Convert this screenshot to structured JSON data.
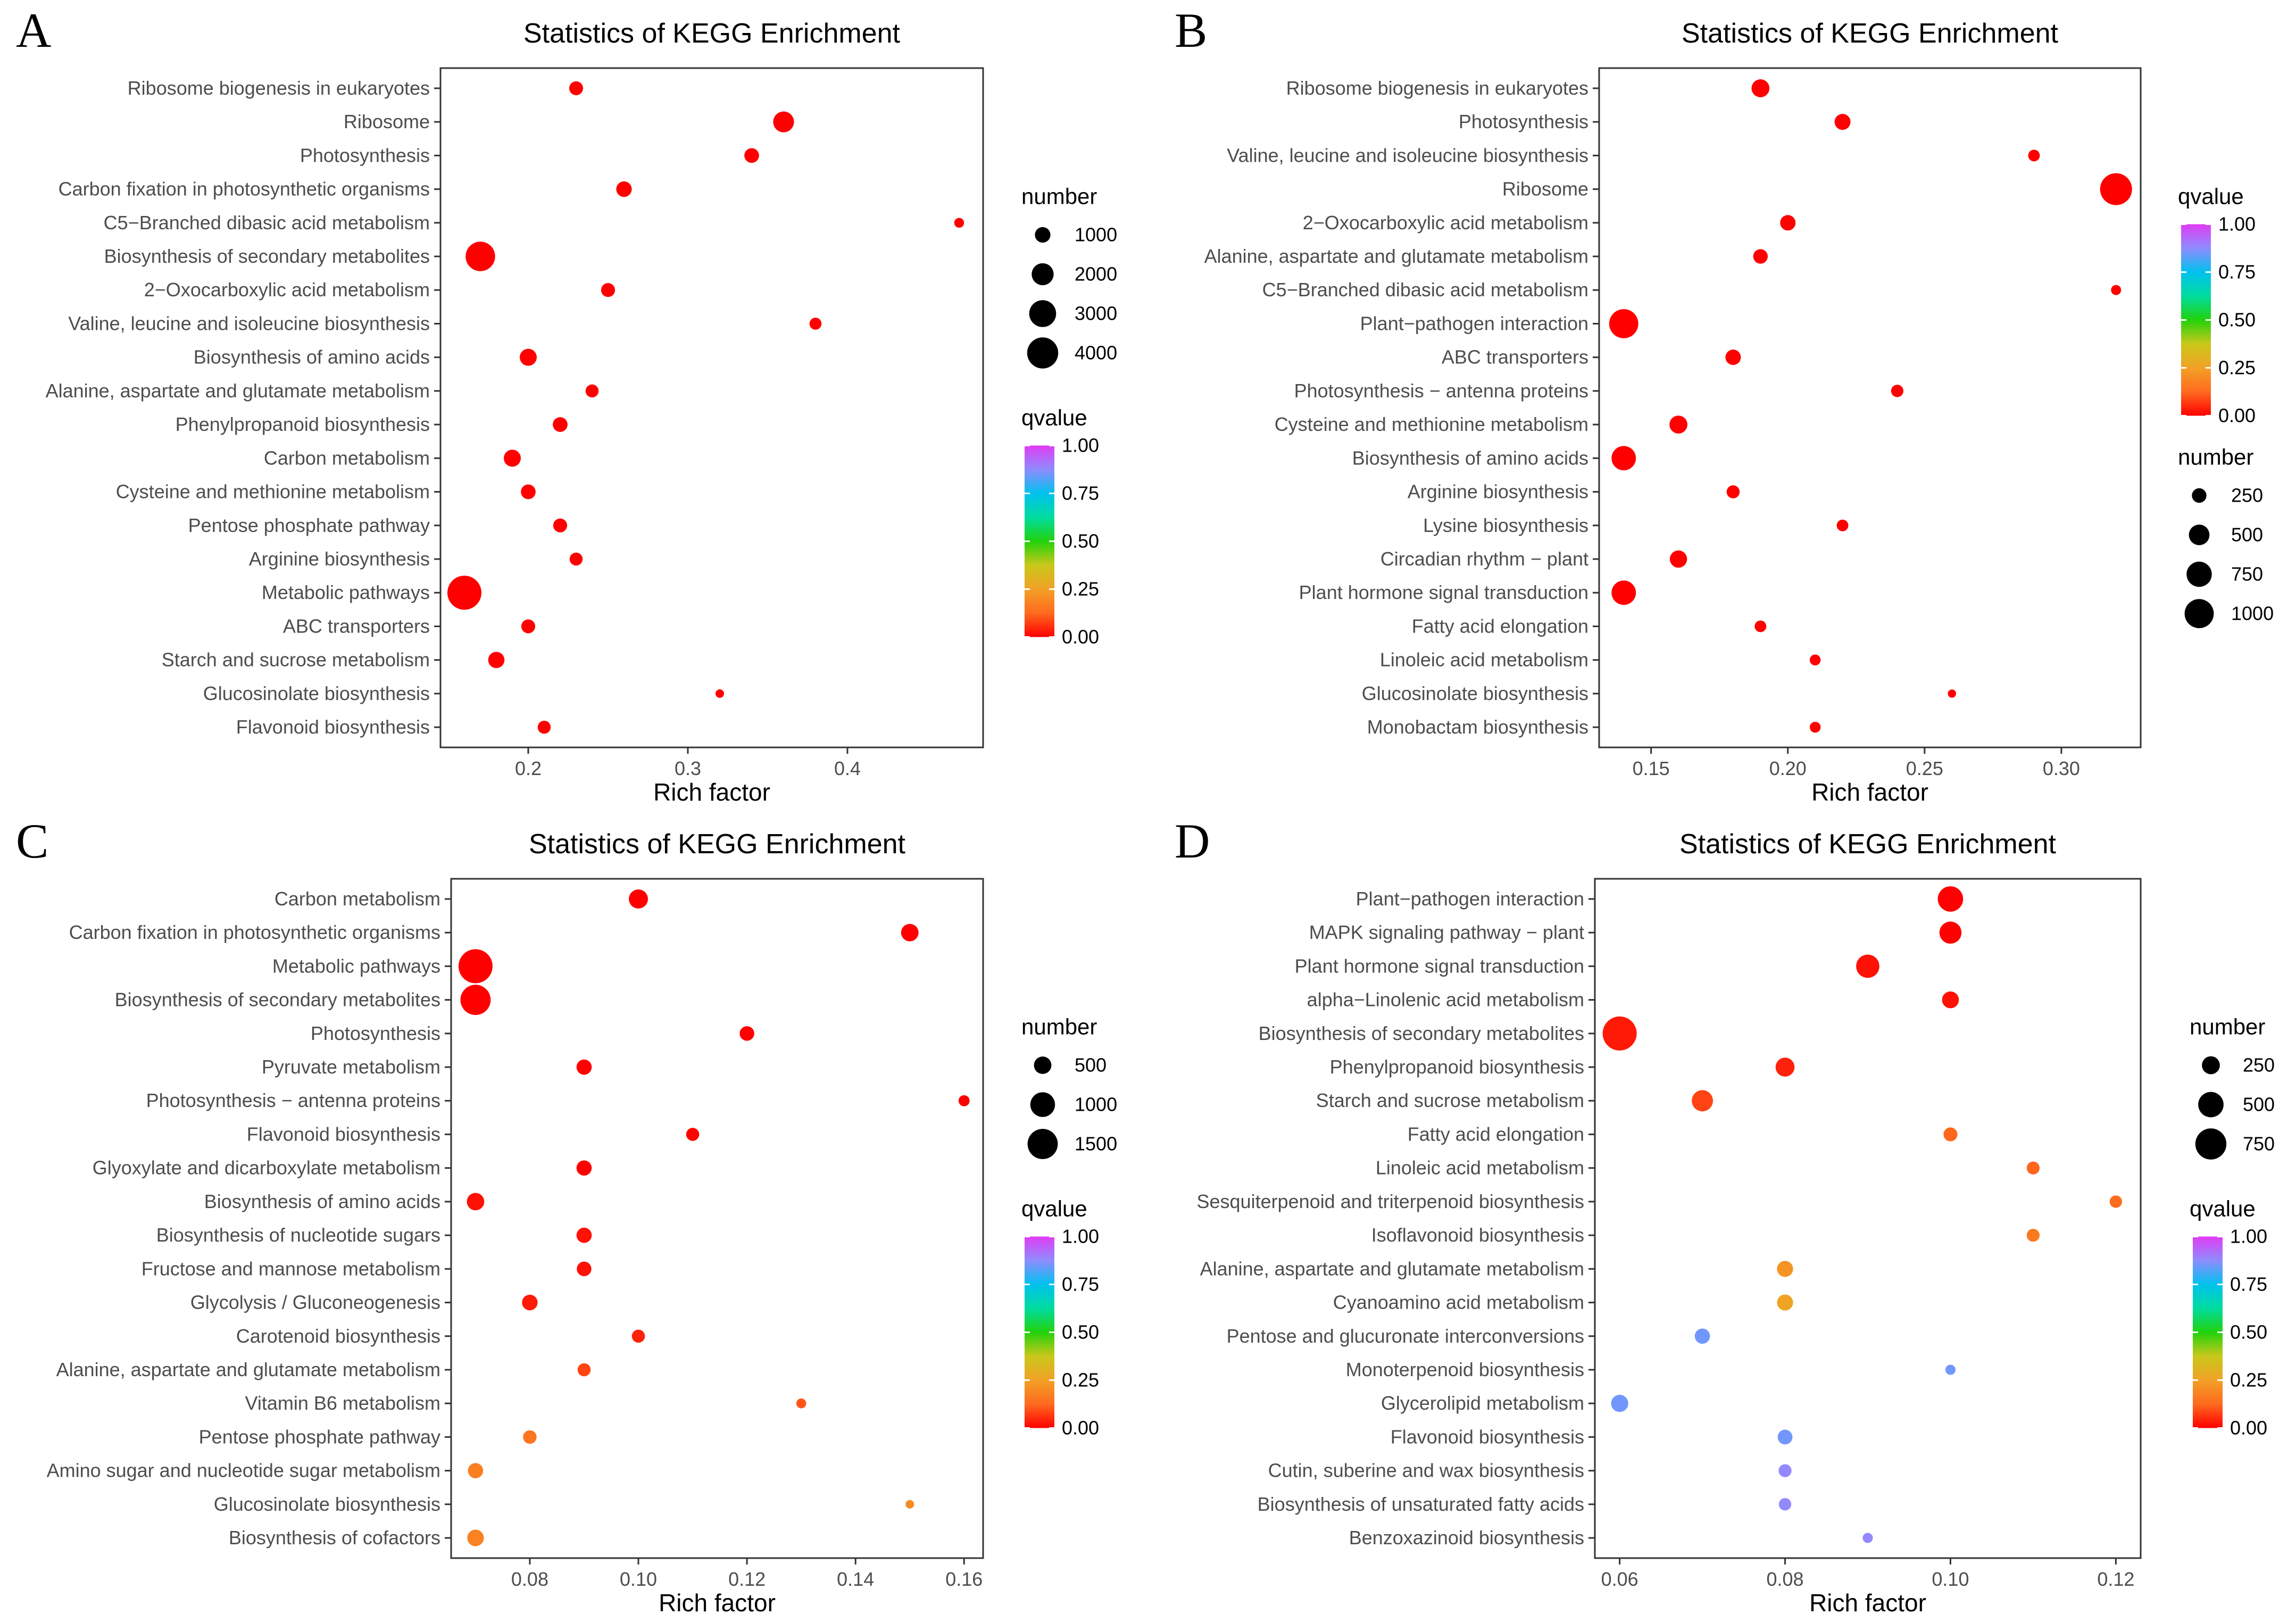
{
  "figure": {
    "panels": [
      "A",
      "B",
      "C",
      "D"
    ]
  },
  "chart_data": [
    {
      "panel_label": "A",
      "type": "scatter",
      "title": "Statistics of KEGG Enrichment",
      "xlabel": "Rich factor",
      "ylabel": "",
      "xlim": [
        0.145,
        0.485
      ],
      "xticks": [
        0.2,
        0.3,
        0.4
      ],
      "xtick_labels": [
        "0.2",
        "0.3",
        "0.4"
      ],
      "grid": false,
      "categories": [
        "Ribosome biogenesis in eukaryotes",
        "Ribosome",
        "Photosynthesis",
        "Carbon fixation in photosynthetic organisms",
        "C5−Branched dibasic acid metabolism",
        "Biosynthesis of secondary metabolites",
        "2−Oxocarboxylic acid metabolism",
        "Valine, leucine and isoleucine biosynthesis",
        "Biosynthesis of amino acids",
        "Alanine, aspartate and glutamate metabolism",
        "Phenylpropanoid biosynthesis",
        "Carbon metabolism",
        "Cysteine and methionine metabolism",
        "Pentose phosphate pathway",
        "Arginine biosynthesis",
        "Metabolic pathways",
        "ABC transporters",
        "Starch and sucrose metabolism",
        "Glucosinolate biosynthesis",
        "Flavonoid biosynthesis"
      ],
      "x": [
        0.23,
        0.36,
        0.34,
        0.26,
        0.47,
        0.17,
        0.25,
        0.38,
        0.2,
        0.24,
        0.22,
        0.19,
        0.2,
        0.22,
        0.23,
        0.16,
        0.2,
        0.18,
        0.32,
        0.21
      ],
      "number": [
        800,
        1800,
        900,
        1000,
        400,
        3600,
        800,
        600,
        1200,
        700,
        900,
        1200,
        900,
        800,
        700,
        4800,
        800,
        1100,
        300,
        700
      ],
      "qvalue": [
        0,
        0,
        0,
        0,
        0,
        0,
        0,
        0,
        0,
        0,
        0,
        0,
        0,
        0,
        0,
        0,
        0,
        0,
        0,
        0
      ],
      "size_legend": {
        "title": "number",
        "values": [
          1000,
          2000,
          3000,
          4000
        ],
        "labels": [
          "1000",
          "2000",
          "3000",
          "4000"
        ],
        "max": 4800,
        "position": "upper-right"
      },
      "color_legend": {
        "title": "qvalue",
        "ticks": [
          1.0,
          0.75,
          0.5,
          0.25,
          0.0
        ],
        "labels": [
          "1.00",
          "0.75",
          "0.50",
          "0.25",
          "0.00"
        ],
        "position": "lower-right"
      },
      "legend_order": [
        "size",
        "color"
      ]
    },
    {
      "panel_label": "B",
      "type": "scatter",
      "title": "Statistics of KEGG Enrichment",
      "xlabel": "Rich factor",
      "ylabel": "",
      "xlim": [
        0.131,
        0.329
      ],
      "xticks": [
        0.15,
        0.2,
        0.25,
        0.3
      ],
      "xtick_labels": [
        "0.15",
        "0.20",
        "0.25",
        "0.30"
      ],
      "grid": false,
      "categories": [
        "Ribosome biogenesis in eukaryotes",
        "Photosynthesis",
        "Valine, leucine and isoleucine biosynthesis",
        "Ribosome",
        "2−Oxocarboxylic acid metabolism",
        "Alanine, aspartate and glutamate metabolism",
        "C5−Branched dibasic acid metabolism",
        "Plant−pathogen interaction",
        "ABC transporters",
        "Photosynthesis − antenna proteins",
        "Cysteine and methionine metabolism",
        "Biosynthesis of amino acids",
        "Arginine biosynthesis",
        "Lysine biosynthesis",
        "Circadian rhythm − plant",
        "Plant hormone signal transduction",
        "Fatty acid elongation",
        "Linoleic acid metabolism",
        "Glucosinolate biosynthesis",
        "Monobactam biosynthesis"
      ],
      "x": [
        0.19,
        0.22,
        0.29,
        0.32,
        0.2,
        0.19,
        0.32,
        0.14,
        0.18,
        0.24,
        0.16,
        0.14,
        0.18,
        0.22,
        0.16,
        0.14,
        0.19,
        0.21,
        0.26,
        0.21
      ],
      "number": [
        380,
        300,
        160,
        1200,
        280,
        250,
        120,
        1000,
        280,
        180,
        380,
        700,
        200,
        160,
        350,
        700,
        160,
        140,
        80,
        140
      ],
      "qvalue": [
        0,
        0,
        0,
        0,
        0,
        0,
        0,
        0,
        0,
        0,
        0,
        0,
        0,
        0,
        0,
        0,
        0,
        0,
        0,
        0
      ],
      "size_legend": {
        "title": "number",
        "values": [
          250,
          500,
          750,
          1000
        ],
        "labels": [
          "250",
          "500",
          "750",
          "1000"
        ],
        "max": 1200,
        "position": "lower-right"
      },
      "color_legend": {
        "title": "qvalue",
        "ticks": [
          1.0,
          0.75,
          0.5,
          0.25,
          0.0
        ],
        "labels": [
          "1.00",
          "0.75",
          "0.50",
          "0.25",
          "0.00"
        ],
        "position": "upper-right"
      },
      "legend_order": [
        "color",
        "size"
      ]
    },
    {
      "panel_label": "C",
      "type": "scatter",
      "title": "Statistics of KEGG Enrichment",
      "xlabel": "Rich factor",
      "ylabel": "",
      "xlim": [
        0.0655,
        0.1635
      ],
      "xticks": [
        0.08,
        0.1,
        0.12,
        0.14,
        0.16
      ],
      "xtick_labels": [
        "0.08",
        "0.10",
        "0.12",
        "0.14",
        "0.16"
      ],
      "grid": false,
      "categories": [
        "Carbon metabolism",
        "Carbon fixation in photosynthetic organisms",
        "Metabolic pathways",
        "Biosynthesis of secondary metabolites",
        "Photosynthesis",
        "Pyruvate metabolism",
        "Photosynthesis − antenna proteins",
        "Flavonoid biosynthesis",
        "Glyoxylate and dicarboxylate metabolism",
        "Biosynthesis of amino acids",
        "Biosynthesis of nucleotide sugars",
        "Fructose and mannose metabolism",
        "Glycolysis / Gluconeogenesis",
        "Carotenoid biosynthesis",
        "Alanine, aspartate and glutamate metabolism",
        "Vitamin B6 metabolism",
        "Pentose phosphate pathway",
        "Amino sugar and nucleotide sugar metabolism",
        "Glucosinolate biosynthesis",
        "Biosynthesis of cofactors"
      ],
      "x": [
        0.1,
        0.15,
        0.07,
        0.07,
        0.12,
        0.09,
        0.16,
        0.11,
        0.09,
        0.07,
        0.09,
        0.09,
        0.08,
        0.1,
        0.09,
        0.13,
        0.08,
        0.07,
        0.15,
        0.07
      ],
      "number": [
        600,
        500,
        1900,
        1500,
        350,
        380,
        200,
        280,
        380,
        500,
        380,
        350,
        400,
        280,
        280,
        160,
        300,
        380,
        120,
        450
      ],
      "qvalue": [
        0,
        0,
        0,
        0,
        0,
        0,
        0,
        0,
        0,
        0.02,
        0.02,
        0.02,
        0.03,
        0.04,
        0.08,
        0.1,
        0.15,
        0.17,
        0.2,
        0.18
      ],
      "size_legend": {
        "title": "number",
        "values": [
          500,
          1000,
          1500
        ],
        "labels": [
          "500",
          "1000",
          "1500"
        ],
        "max": 1900,
        "position": "upper-right"
      },
      "color_legend": {
        "title": "qvalue",
        "ticks": [
          1.0,
          0.75,
          0.5,
          0.25,
          0.0
        ],
        "labels": [
          "1.00",
          "0.75",
          "0.50",
          "0.25",
          "0.00"
        ],
        "position": "lower-right"
      },
      "legend_order": [
        "size",
        "color"
      ]
    },
    {
      "panel_label": "D",
      "type": "scatter",
      "title": "Statistics of KEGG Enrichment",
      "xlabel": "Rich factor",
      "ylabel": "",
      "xlim": [
        0.057,
        0.123
      ],
      "xticks": [
        0.06,
        0.08,
        0.1,
        0.12
      ],
      "xtick_labels": [
        "0.06",
        "0.08",
        "0.10",
        "0.12"
      ],
      "grid": false,
      "categories": [
        "Plant−pathogen interaction",
        "MAPK signaling pathway − plant",
        "Plant hormone signal transduction",
        "alpha−Linolenic acid metabolism",
        "Biosynthesis of secondary metabolites",
        "Phenylpropanoid biosynthesis",
        "Starch and sucrose metabolism",
        "Fatty acid elongation",
        "Linoleic acid metabolism",
        "Sesquiterpenoid and triterpenoid biosynthesis",
        "Isoflavonoid biosynthesis",
        "Alanine, aspartate and glutamate metabolism",
        "Cyanoamino acid metabolism",
        "Pentose and glucuronate interconversions",
        "Monoterpenoid biosynthesis",
        "Glycerolipid metabolism",
        "Flavonoid biosynthesis",
        "Cutin, suberine and wax biosynthesis",
        "Biosynthesis of unsaturated fatty acids",
        "Benzoxazinoid biosynthesis"
      ],
      "x": [
        0.1,
        0.1,
        0.09,
        0.1,
        0.06,
        0.08,
        0.07,
        0.1,
        0.11,
        0.12,
        0.11,
        0.08,
        0.08,
        0.07,
        0.1,
        0.06,
        0.08,
        0.08,
        0.08,
        0.09
      ],
      "number": [
        500,
        380,
        420,
        220,
        900,
        280,
        350,
        150,
        130,
        120,
        130,
        200,
        200,
        180,
        80,
        230,
        170,
        130,
        120,
        80
      ],
      "qvalue": [
        0,
        0,
        0.02,
        0.02,
        0.03,
        0.04,
        0.08,
        0.12,
        0.12,
        0.13,
        0.16,
        0.22,
        0.26,
        0.85,
        0.85,
        0.85,
        0.85,
        0.88,
        0.88,
        0.88
      ],
      "size_legend": {
        "title": "number",
        "values": [
          250,
          500,
          750
        ],
        "labels": [
          "250",
          "500",
          "750"
        ],
        "max": 900,
        "position": "upper-right"
      },
      "color_legend": {
        "title": "qvalue",
        "ticks": [
          1.0,
          0.75,
          0.5,
          0.25,
          0.0
        ],
        "labels": [
          "1.00",
          "0.75",
          "0.50",
          "0.25",
          "0.00"
        ],
        "position": "lower-right"
      },
      "legend_order": [
        "size",
        "color"
      ]
    }
  ]
}
